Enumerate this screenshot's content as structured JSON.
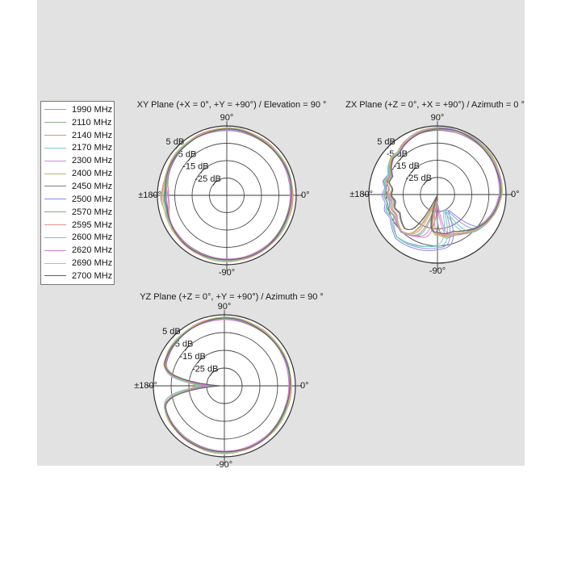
{
  "window": {
    "bg": "#ffffff",
    "panel_bg": "#e2e2e2"
  },
  "legend": {
    "items": [
      {
        "label": "1990 MHz",
        "color": "#9898e8"
      },
      {
        "label": "2110 MHz",
        "color": "#8fae8f"
      },
      {
        "label": "2140 MHz",
        "color": "#e08585"
      },
      {
        "label": "2170 MHz",
        "color": "#82cbc5"
      },
      {
        "label": "2300 MHz",
        "color": "#d988d9"
      },
      {
        "label": "2400 MHz",
        "color": "#b8b868"
      },
      {
        "label": "2450 MHz",
        "color": "#7e7e7e"
      },
      {
        "label": "2500 MHz",
        "color": "#8888ea"
      },
      {
        "label": "2570 MHz",
        "color": "#84a884"
      },
      {
        "label": "2595 MHz",
        "color": "#ea8f8f"
      },
      {
        "label": "2600 MHz",
        "color": "#78c5c5"
      },
      {
        "label": "2620 MHz",
        "color": "#d47fd4"
      },
      {
        "label": "2690 MHz",
        "color": "#c3c372"
      },
      {
        "label": "2700 MHz",
        "color": "#616161"
      }
    ]
  },
  "chart_data": [
    {
      "type": "polar",
      "title": "XY Plane (+X = 0°, +Y = +90°) / Elevation = 90 °",
      "angle_labels": {
        "top": "90°",
        "right": "0°",
        "bottom": "-90°",
        "left": "±180°"
      },
      "r_ticks": [
        {
          "db": 5,
          "label": "5 dB"
        },
        {
          "db": -5,
          "label": "-5 dB"
        },
        {
          "db": -15,
          "label": "-15 dB"
        },
        {
          "db": -25,
          "label": "-25 dB"
        }
      ],
      "r_range_db": [
        -35,
        5
      ],
      "angle_convention": "degrees, 0 = right, counter-clockwise",
      "base_profile_db": [
        [
          0,
          2.3
        ],
        [
          20,
          2.5
        ],
        [
          40,
          2.7
        ],
        [
          60,
          2.9
        ],
        [
          80,
          3.1
        ],
        [
          100,
          3.0
        ],
        [
          120,
          2.8
        ],
        [
          140,
          2.3
        ],
        [
          155,
          1.7
        ],
        [
          165,
          1.1
        ],
        [
          175,
          0.7
        ],
        [
          183,
          1.2
        ],
        [
          191,
          0.6
        ],
        [
          200,
          1.1
        ],
        [
          215,
          1.6
        ],
        [
          235,
          2.0
        ],
        [
          255,
          2.3
        ],
        [
          275,
          2.5
        ],
        [
          295,
          2.5
        ],
        [
          315,
          2.4
        ],
        [
          335,
          2.3
        ],
        [
          355,
          2.3
        ]
      ],
      "series": [
        {
          "name": "1990 MHz",
          "color": "#9898e8",
          "offset": 0.3,
          "wa": 0.35,
          "wf": 5,
          "wp": 0.0,
          "bamp": -2.5,
          "ba": 183,
          "bw": 12
        },
        {
          "name": "2110 MHz",
          "color": "#8fae8f",
          "offset": -0.2,
          "wa": 0.3,
          "wf": 6,
          "wp": 1.0,
          "bamp": -1.5,
          "ba": 183,
          "bw": 12
        },
        {
          "name": "2140 MHz",
          "color": "#e08585",
          "offset": 0.5,
          "wa": 0.4,
          "wf": 4,
          "wp": 2.0,
          "bamp": 1.2,
          "ba": 183,
          "bw": 12
        },
        {
          "name": "2170 MHz",
          "color": "#82cbc5",
          "offset": 0.1,
          "wa": 0.3,
          "wf": 7,
          "wp": 3.0,
          "bamp": -0.5,
          "ba": 183,
          "bw": 12
        },
        {
          "name": "2300 MHz",
          "color": "#d988d9",
          "offset": -0.4,
          "wa": 0.35,
          "wf": 5,
          "wp": 4.0,
          "bamp": 0.8,
          "ba": 183,
          "bw": 12
        },
        {
          "name": "2400 MHz",
          "color": "#b8b868",
          "offset": 0.6,
          "wa": 0.3,
          "wf": 6,
          "wp": 5.0,
          "bamp": 1.5,
          "ba": 183,
          "bw": 12
        },
        {
          "name": "2450 MHz",
          "color": "#7e7e7e",
          "offset": -0.6,
          "wa": 0.25,
          "wf": 4,
          "wp": 6.0,
          "bamp": -2.0,
          "ba": 183,
          "bw": 12
        },
        {
          "name": "2500 MHz",
          "color": "#8888ea",
          "offset": 0.2,
          "wa": 0.4,
          "wf": 5,
          "wp": 0.5,
          "bamp": -1.0,
          "ba": 183,
          "bw": 12
        },
        {
          "name": "2570 MHz",
          "color": "#84a884",
          "offset": -0.3,
          "wa": 0.3,
          "wf": 7,
          "wp": 1.5,
          "bamp": 0.5,
          "ba": 183,
          "bw": 12
        },
        {
          "name": "2595 MHz",
          "color": "#ea8f8f",
          "offset": 0.4,
          "wa": 0.35,
          "wf": 6,
          "wp": 2.5,
          "bamp": -2.8,
          "ba": 183,
          "bw": 12
        },
        {
          "name": "2600 MHz",
          "color": "#78c5c5",
          "offset": 0.0,
          "wa": 0.3,
          "wf": 5,
          "wp": 3.5,
          "bamp": 0.3,
          "ba": 183,
          "bw": 12
        },
        {
          "name": "2620 MHz",
          "color": "#d47fd4",
          "offset": -0.5,
          "wa": 0.3,
          "wf": 4,
          "wp": 4.5,
          "bamp": -1.8,
          "ba": 183,
          "bw": 12
        },
        {
          "name": "2690 MHz",
          "color": "#c3c372",
          "offset": 0.55,
          "wa": 0.35,
          "wf": 6,
          "wp": 5.5,
          "bamp": 1.0,
          "ba": 183,
          "bw": 12
        },
        {
          "name": "2700 MHz",
          "color": "#616161",
          "offset": -0.1,
          "wa": 0.25,
          "wf": 5,
          "wp": 0.2,
          "bamp": -0.2,
          "ba": 183,
          "bw": 12
        }
      ]
    },
    {
      "type": "polar",
      "title": "ZX Plane (+Z = 0°, +X = +90°) / Azimuth = 0 °",
      "angle_labels": {
        "top": "90°",
        "right": "0°",
        "bottom": "-90°",
        "left": "±180°"
      },
      "r_ticks": [
        {
          "db": 5,
          "label": "5 dB"
        },
        {
          "db": -5,
          "label": "-5 dB"
        },
        {
          "db": -15,
          "label": "-15 dB"
        },
        {
          "db": -25,
          "label": "-25 dB"
        }
      ],
      "r_range_db": [
        -35,
        5
      ],
      "angle_convention": "degrees, 0 = right, counter-clockwise",
      "base_profile_db": [
        [
          0,
          1.8
        ],
        [
          15,
          2.4
        ],
        [
          30,
          2.9
        ],
        [
          45,
          3.2
        ],
        [
          60,
          3.4
        ],
        [
          75,
          3.4
        ],
        [
          90,
          3.2
        ],
        [
          105,
          2.6
        ],
        [
          115,
          1.6
        ],
        [
          125,
          0.2
        ],
        [
          133,
          -1.6
        ],
        [
          141,
          -0.8
        ],
        [
          150,
          -2.6
        ],
        [
          158,
          -5.2
        ],
        [
          166,
          -3.8
        ],
        [
          173,
          -6.2
        ],
        [
          181,
          -4.8
        ],
        [
          189,
          -6.8
        ],
        [
          197,
          -5.2
        ],
        [
          206,
          -7.2
        ],
        [
          216,
          -5.8
        ],
        [
          226,
          -4.6
        ],
        [
          236,
          -6.4
        ],
        [
          246,
          -8.5
        ],
        [
          258,
          -10.0
        ],
        [
          270,
          -10.5
        ],
        [
          282,
          -9.5
        ],
        [
          294,
          -9.8
        ],
        [
          306,
          -7.5
        ],
        [
          318,
          -4.6
        ],
        [
          330,
          -2.4
        ],
        [
          342,
          -0.6
        ],
        [
          354,
          0.8
        ]
      ],
      "series": [
        {
          "name": "1990 MHz",
          "color": "#9898e8",
          "offset": 0.2,
          "wa": 0.5,
          "wf": 3,
          "wp": 0.0,
          "na": 300,
          "nd": 19,
          "nw": 11,
          "ba": 255,
          "bamp": 6.5,
          "bw": 45,
          "b2a": 185,
          "b2amp": -1.5,
          "b2w": 35
        },
        {
          "name": "2110 MHz",
          "color": "#8fae8f",
          "offset": -0.1,
          "wa": 0.5,
          "wf": 4,
          "wp": 1.2,
          "na": 262,
          "nd": 22,
          "nw": 9,
          "ba": 255,
          "bamp": 0.5,
          "bw": 45,
          "b2a": 185,
          "b2amp": 0.5,
          "b2w": 35
        },
        {
          "name": "2140 MHz",
          "color": "#e08585",
          "offset": 0.4,
          "wa": 0.6,
          "wf": 3,
          "wp": 2.2,
          "na": 252,
          "nd": 24,
          "nw": 8,
          "ba": 255,
          "bamp": -1.5,
          "bw": 45,
          "b2a": 185,
          "b2amp": -2.5,
          "b2w": 35
        },
        {
          "name": "2170 MHz",
          "color": "#82cbc5",
          "offset": 0.1,
          "wa": 0.5,
          "wf": 4,
          "wp": 3.1,
          "na": 290,
          "nd": 18,
          "nw": 10,
          "ba": 255,
          "bamp": 5.5,
          "bw": 45,
          "b2a": 185,
          "b2amp": 1.0,
          "b2w": 35
        },
        {
          "name": "2300 MHz",
          "color": "#d988d9",
          "offset": -0.3,
          "wa": 0.6,
          "wf": 3,
          "wp": 4.2,
          "na": 268,
          "nd": 21,
          "nw": 9,
          "ba": 255,
          "bamp": 1.0,
          "bw": 45,
          "b2a": 185,
          "b2amp": -0.5,
          "b2w": 35
        },
        {
          "name": "2400 MHz",
          "color": "#b8b868",
          "offset": 0.5,
          "wa": 0.5,
          "wf": 4,
          "wp": 5.3,
          "na": 250,
          "nd": 23,
          "nw": 8,
          "ba": 255,
          "bamp": -1.0,
          "bw": 45,
          "b2a": 185,
          "b2amp": -3.0,
          "b2w": 35
        },
        {
          "name": "2450 MHz",
          "color": "#7e7e7e",
          "offset": -0.5,
          "wa": 0.4,
          "wf": 3,
          "wp": 0.7,
          "na": 247,
          "nd": 25,
          "nw": 8,
          "ba": 255,
          "bamp": -2.5,
          "bw": 45,
          "b2a": 185,
          "b2amp": -2.0,
          "b2w": 35
        },
        {
          "name": "2500 MHz",
          "color": "#8888ea",
          "offset": 0.3,
          "wa": 0.6,
          "wf": 4,
          "wp": 1.8,
          "na": 305,
          "nd": 18,
          "nw": 11,
          "ba": 255,
          "bamp": 7.5,
          "bw": 45,
          "b2a": 185,
          "b2amp": 1.0,
          "b2w": 35
        },
        {
          "name": "2570 MHz",
          "color": "#84a884",
          "offset": -0.2,
          "wa": 0.5,
          "wf": 3,
          "wp": 2.9,
          "na": 260,
          "nd": 22,
          "nw": 9,
          "ba": 255,
          "bamp": 0.0,
          "bw": 45,
          "b2a": 185,
          "b2amp": 0.0,
          "b2w": 35
        },
        {
          "name": "2595 MHz",
          "color": "#ea8f8f",
          "offset": 0.35,
          "wa": 0.6,
          "wf": 4,
          "wp": 3.9,
          "na": 255,
          "nd": 24,
          "nw": 8,
          "ba": 255,
          "bamp": -1.8,
          "bw": 45,
          "b2a": 185,
          "b2amp": -1.0,
          "b2w": 35
        },
        {
          "name": "2600 MHz",
          "color": "#78c5c5",
          "offset": 0.05,
          "wa": 0.5,
          "wf": 3,
          "wp": 5.0,
          "na": 295,
          "nd": 19,
          "nw": 10,
          "ba": 255,
          "bamp": 6.0,
          "bw": 45,
          "b2a": 185,
          "b2amp": 0.5,
          "b2w": 35
        },
        {
          "name": "2620 MHz",
          "color": "#d47fd4",
          "offset": -0.4,
          "wa": 0.5,
          "wf": 4,
          "wp": 0.3,
          "na": 272,
          "nd": 20,
          "nw": 9,
          "ba": 255,
          "bamp": 1.5,
          "bw": 45,
          "b2a": 185,
          "b2amp": -1.8,
          "b2w": 35
        },
        {
          "name": "2690 MHz",
          "color": "#c3c372",
          "offset": 0.45,
          "wa": 0.5,
          "wf": 3,
          "wp": 1.4,
          "na": 251,
          "nd": 23,
          "nw": 8,
          "ba": 255,
          "bamp": -1.2,
          "bw": 45,
          "b2a": 185,
          "b2amp": -2.2,
          "b2w": 35
        },
        {
          "name": "2700 MHz",
          "color": "#616161",
          "offset": -0.15,
          "wa": 0.4,
          "wf": 4,
          "wp": 2.6,
          "na": 248,
          "nd": 26,
          "nw": 8,
          "ba": 255,
          "bamp": -2.8,
          "bw": 45,
          "b2a": 185,
          "b2amp": -3.2,
          "b2w": 35
        }
      ]
    },
    {
      "type": "polar",
      "title": "YZ Plane (+Z = 0°, +Y = +90°) / Azimuth = 90 °",
      "angle_labels": {
        "top": "90°",
        "right": "0°",
        "bottom": "-90°",
        "left": "±180°"
      },
      "r_ticks": [
        {
          "db": 5,
          "label": "5 dB"
        },
        {
          "db": -5,
          "label": "-5 dB"
        },
        {
          "db": -15,
          "label": "-15 dB"
        },
        {
          "db": -25,
          "label": "-25 dB"
        }
      ],
      "r_range_db": [
        -35,
        5
      ],
      "angle_convention": "degrees, 0 = right, counter-clockwise",
      "base_profile_db": [
        [
          0,
          2.0
        ],
        [
          25,
          2.3
        ],
        [
          50,
          2.7
        ],
        [
          75,
          2.95
        ],
        [
          90,
          3.0
        ],
        [
          105,
          2.8
        ],
        [
          125,
          2.3
        ],
        [
          145,
          1.7
        ],
        [
          160,
          0.8
        ],
        [
          170,
          -1.2
        ],
        [
          180,
          -5.0
        ],
        [
          190,
          -1.2
        ],
        [
          200,
          0.8
        ],
        [
          215,
          1.5
        ],
        [
          235,
          2.0
        ],
        [
          255,
          2.4
        ],
        [
          275,
          2.5
        ],
        [
          295,
          2.35
        ],
        [
          315,
          2.15
        ],
        [
          335,
          2.0
        ]
      ],
      "series": [
        {
          "name": "1990 MHz",
          "color": "#9898e8",
          "offset": 0.25,
          "wa": 0.3,
          "wf": 5,
          "wp": 0.0,
          "na": 180,
          "nd": 25,
          "nw": 9
        },
        {
          "name": "2110 MHz",
          "color": "#8fae8f",
          "offset": -0.15,
          "wa": 0.3,
          "wf": 6,
          "wp": 1.0,
          "na": 180,
          "nd": 19,
          "nw": 9
        },
        {
          "name": "2140 MHz",
          "color": "#e08585",
          "offset": 0.45,
          "wa": 0.35,
          "wf": 4,
          "wp": 2.0,
          "na": 180,
          "nd": 23,
          "nw": 9
        },
        {
          "name": "2170 MHz",
          "color": "#82cbc5",
          "offset": 0.05,
          "wa": 0.3,
          "wf": 7,
          "wp": 3.0,
          "na": 180,
          "nd": 17,
          "nw": 8
        },
        {
          "name": "2300 MHz",
          "color": "#d988d9",
          "offset": -0.35,
          "wa": 0.3,
          "wf": 5,
          "wp": 4.0,
          "na": 180,
          "nd": 21,
          "nw": 9
        },
        {
          "name": "2400 MHz",
          "color": "#b8b868",
          "offset": 0.5,
          "wa": 0.3,
          "wf": 6,
          "wp": 5.0,
          "na": 180,
          "nd": 15,
          "nw": 12
        },
        {
          "name": "2450 MHz",
          "color": "#7e7e7e",
          "offset": -0.55,
          "wa": 0.25,
          "wf": 4,
          "wp": 6.0,
          "na": 180,
          "nd": 28,
          "nw": 9
        },
        {
          "name": "2500 MHz",
          "color": "#8888ea",
          "offset": 0.15,
          "wa": 0.35,
          "wf": 5,
          "wp": 0.5,
          "na": 180,
          "nd": 24,
          "nw": 9
        },
        {
          "name": "2570 MHz",
          "color": "#84a884",
          "offset": -0.25,
          "wa": 0.3,
          "wf": 7,
          "wp": 1.5,
          "na": 180,
          "nd": 18,
          "nw": 9
        },
        {
          "name": "2595 MHz",
          "color": "#ea8f8f",
          "offset": 0.35,
          "wa": 0.3,
          "wf": 6,
          "wp": 2.5,
          "na": 180,
          "nd": 22,
          "nw": 9
        },
        {
          "name": "2600 MHz",
          "color": "#78c5c5",
          "offset": 0.0,
          "wa": 0.3,
          "wf": 5,
          "wp": 3.5,
          "na": 180,
          "nd": 16,
          "nw": 8
        },
        {
          "name": "2620 MHz",
          "color": "#d47fd4",
          "offset": -0.45,
          "wa": 0.3,
          "wf": 4,
          "wp": 4.5,
          "na": 180,
          "nd": 20,
          "nw": 9
        },
        {
          "name": "2690 MHz",
          "color": "#c3c372",
          "offset": 0.5,
          "wa": 0.3,
          "wf": 6,
          "wp": 5.5,
          "na": 180,
          "nd": 14.5,
          "nw": 12
        },
        {
          "name": "2700 MHz",
          "color": "#616161",
          "offset": -0.05,
          "wa": 0.25,
          "wf": 5,
          "wp": 0.2,
          "na": 180,
          "nd": 28,
          "nw": 9
        }
      ]
    }
  ]
}
